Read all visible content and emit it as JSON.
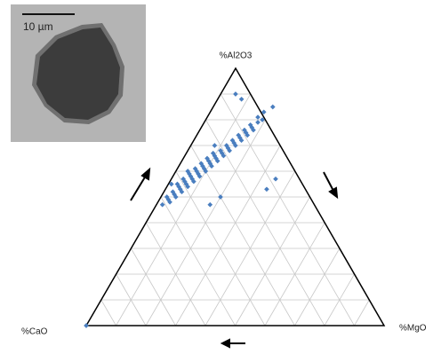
{
  "chart_data": {
    "type": "ternary",
    "top_label": "%Al2O3",
    "left_label": "%CaO",
    "right_label": "%MgO",
    "lim": [
      0,
      100
    ],
    "ticks": [
      10,
      20,
      30,
      40,
      50,
      60,
      70,
      80,
      90
    ],
    "grid": true,
    "color": "#4a7ebf",
    "al2o3": [
      47,
      48,
      49,
      50,
      50,
      51,
      52,
      52,
      53,
      54,
      54,
      55,
      55,
      56,
      56,
      57,
      57,
      58,
      58,
      59,
      59,
      60,
      60,
      61,
      61,
      62,
      62,
      63,
      63,
      64,
      64,
      65,
      65,
      66,
      66,
      67,
      67,
      68,
      68,
      69,
      70,
      70,
      71,
      72,
      72,
      73,
      74,
      74,
      75,
      76,
      76,
      77,
      78,
      79,
      80,
      81,
      83,
      85,
      88,
      90,
      70,
      60,
      55,
      53,
      57,
      47,
      50,
      0
    ],
    "mgo": [
      2,
      4,
      3,
      5,
      2,
      4,
      6,
      3,
      5,
      7,
      4,
      6,
      3,
      8,
      5,
      7,
      4,
      9,
      6,
      8,
      5,
      10,
      7,
      9,
      6,
      11,
      8,
      10,
      7,
      12,
      9,
      11,
      8,
      13,
      10,
      12,
      9,
      14,
      11,
      13,
      15,
      12,
      14,
      16,
      13,
      15,
      17,
      14,
      16,
      18,
      15,
      17,
      16,
      18,
      19,
      17,
      18,
      20,
      8,
      5,
      8,
      4,
      1,
      34,
      35,
      18,
      20,
      0
    ],
    "cao": [
      51,
      48,
      48,
      45,
      48,
      45,
      42,
      45,
      42,
      39,
      42,
      39,
      42,
      36,
      39,
      36,
      39,
      33,
      36,
      33,
      36,
      30,
      33,
      30,
      33,
      27,
      30,
      27,
      30,
      24,
      27,
      24,
      27,
      21,
      24,
      21,
      24,
      18,
      21,
      18,
      15,
      18,
      15,
      12,
      15,
      12,
      9,
      12,
      9,
      6,
      9,
      6,
      6,
      3,
      1,
      2,
      -1,
      -5,
      4,
      5,
      22,
      36,
      44,
      13,
      8,
      35,
      30,
      100
    ]
  },
  "inset": {
    "scale_label": "10 µm"
  }
}
